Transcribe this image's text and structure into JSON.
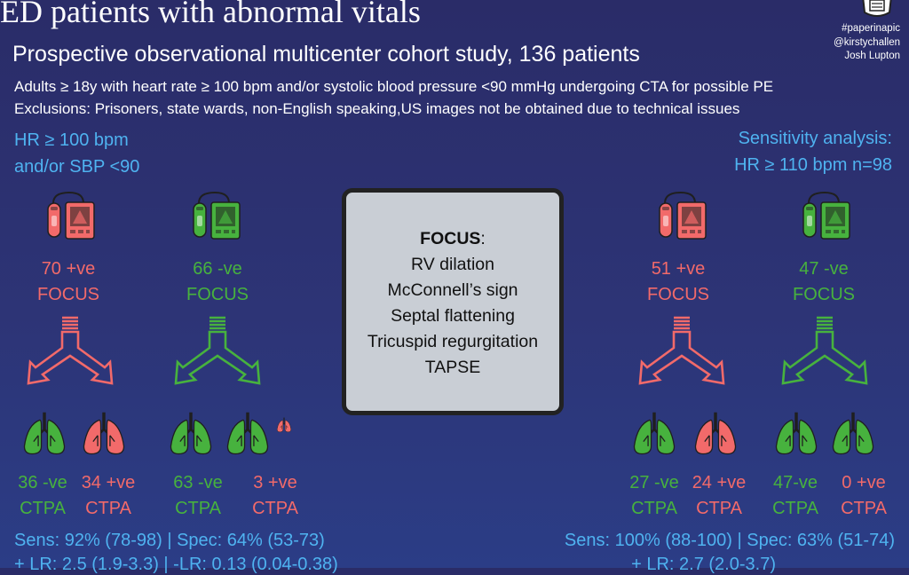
{
  "header": {
    "title": "ED patients with abnormal vitals",
    "subtitle": "Prospective observational multicenter cohort study, 136 patients",
    "inclusion": "Adults ≥ 18y with heart rate ≥ 100 bpm and/or systolic blood pressure <90 mmHg undergoing CTA  for possible PE",
    "exclusion": "Exclusions: Prisoners, state wards, non-English speaking,US images not be obtained due to technical issues"
  },
  "tags": [
    "#paperinapic",
    "@kirstychallen",
    "Josh Lupton"
  ],
  "left_group": {
    "label_line1": "HR ≥ 100 bpm",
    "label_line2": "and/or SBP <90",
    "pos_focus": {
      "count": "70 +ve",
      "label": "FOCUS"
    },
    "neg_focus": {
      "count": "66 -ve",
      "label": "FOCUS"
    },
    "ctpa": [
      {
        "count": "36 -ve",
        "label": "CTPA"
      },
      {
        "count": "34 +ve",
        "label": "CTPA"
      },
      {
        "count": "63 -ve",
        "label": "CTPA"
      },
      {
        "count": "3 +ve",
        "label": "CTPA"
      }
    ],
    "stats_line1": "Sens: 92% (78-98) | Spec: 64% (53-73)",
    "stats_line2": "+ LR: 2.5 (1.9-3.3) | -LR: 0.13 (0.04-0.38)"
  },
  "right_group": {
    "label_line1": "Sensitivity analysis:",
    "label_line2": "HR ≥ 110 bpm n=98",
    "pos_focus": {
      "count": "51 +ve",
      "label": "FOCUS"
    },
    "neg_focus": {
      "count": "47 -ve",
      "label": "FOCUS"
    },
    "ctpa": [
      {
        "count": "27 -ve",
        "label": "CTPA"
      },
      {
        "count": "24 +ve",
        "label": "CTPA"
      },
      {
        "count": "47-ve",
        "label": "CTPA"
      },
      {
        "count": "0 +ve",
        "label": "CTPA"
      }
    ],
    "stats_line1": "Sens: 100% (88-100) | Spec: 63% (51-74)",
    "stats_line2": "+ LR: 2.7 (2.0-3.7)"
  },
  "focus_box": {
    "heading": "FOCUS",
    "heading_suffix": ":",
    "items": [
      "RV dilation",
      "McConnell’s sign",
      "Septal flattening",
      "Tricuspid regurgitation",
      "TAPSE"
    ]
  },
  "colors": {
    "positive": "#f26a6a",
    "negative": "#47b23e",
    "accent": "#4fb3f0"
  }
}
